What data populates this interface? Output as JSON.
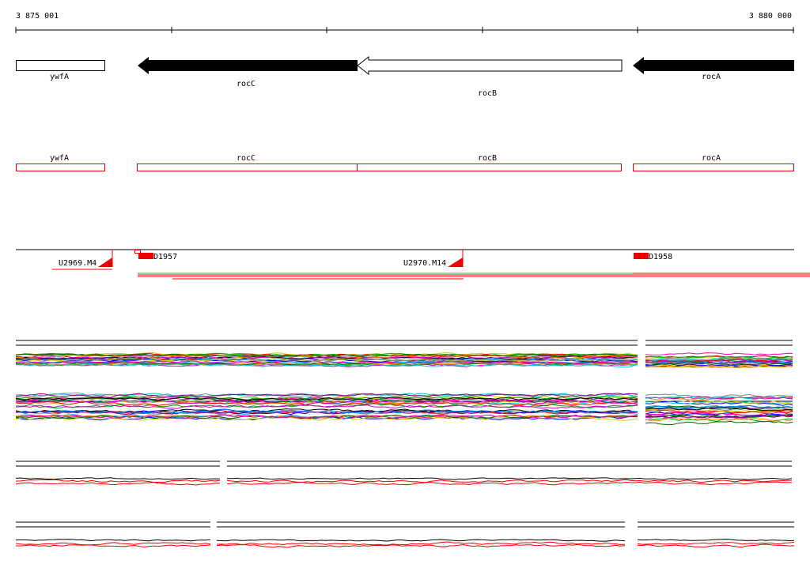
{
  "ruler": {
    "start": "3 875 001",
    "end": "3 880 000"
  },
  "genes": [
    {
      "label": "ywfA"
    },
    {
      "label": "rocC"
    },
    {
      "label": "rocB"
    },
    {
      "label": "rocA"
    }
  ],
  "features": [
    {
      "label": "ywfA"
    },
    {
      "label": "rocC"
    },
    {
      "label": "rocB"
    },
    {
      "label": "rocA"
    }
  ],
  "regions": [
    {
      "label": "U2969.M4"
    },
    {
      "label": "D1957"
    },
    {
      "label": "U2970.M14"
    },
    {
      "label": "D1958"
    }
  ]
}
